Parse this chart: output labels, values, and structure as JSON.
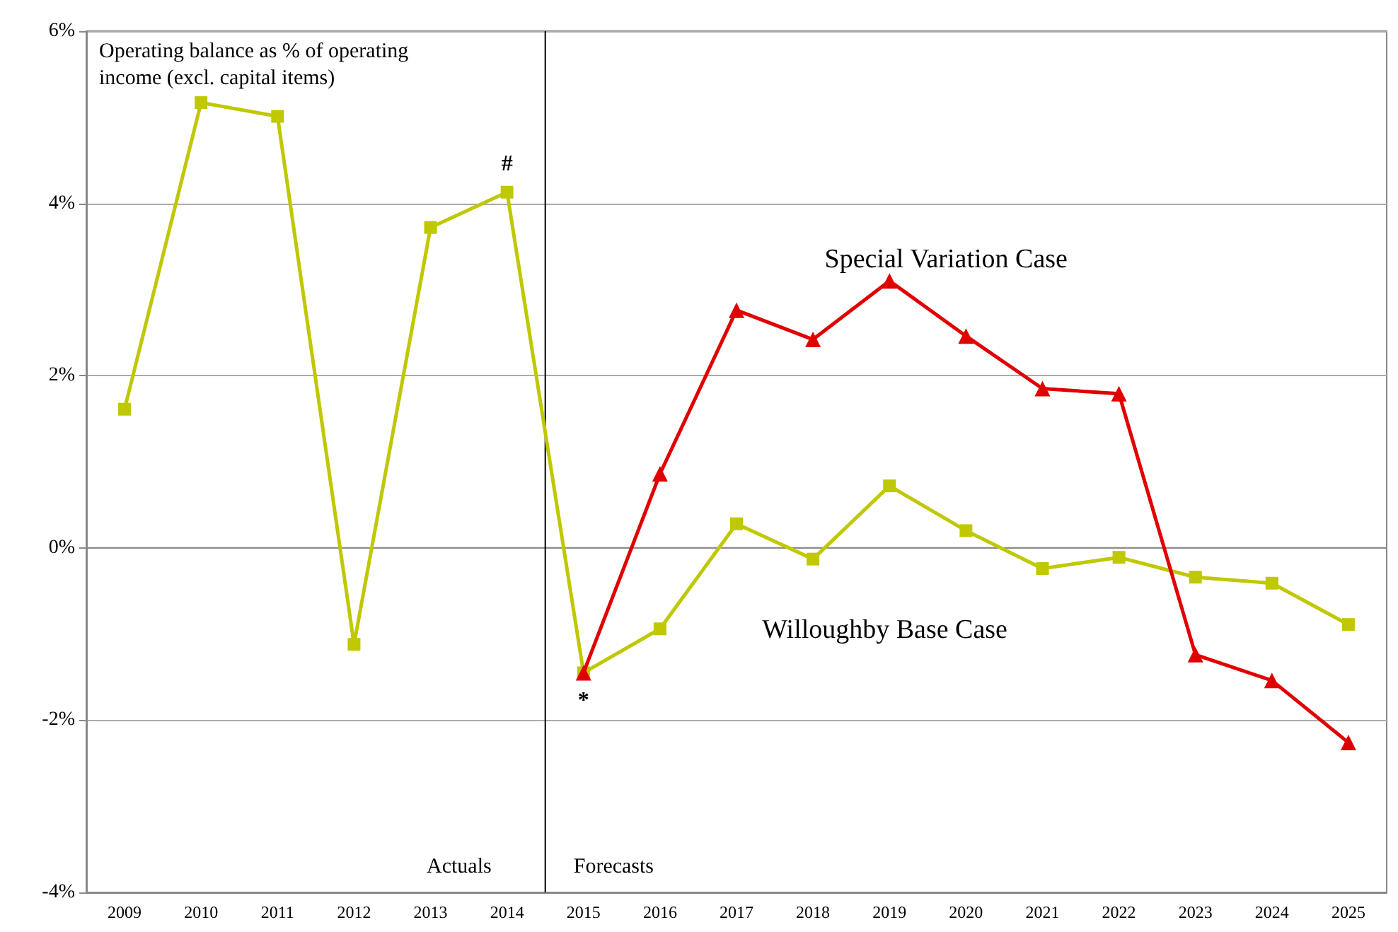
{
  "chart_data": {
    "type": "line",
    "title": "Operating balance as % of operating income (excl. capital items)",
    "categories": [
      "2009",
      "2010",
      "2011",
      "2012",
      "2013",
      "2014",
      "2015",
      "2016",
      "2017",
      "2018",
      "2019",
      "2020",
      "2021",
      "2022",
      "2023",
      "2024",
      "2025"
    ],
    "series": [
      {
        "name": "Willoughby Base Case",
        "color": "#bfc800",
        "marker": "square",
        "values": [
          1.61,
          5.17,
          5.01,
          -1.12,
          3.72,
          4.13,
          -1.45,
          -0.94,
          0.28,
          -0.13,
          0.72,
          0.2,
          -0.24,
          -0.11,
          -0.34,
          -0.41,
          -0.89
        ]
      },
      {
        "name": "Special Variation Case",
        "color": "#e00000",
        "marker": "triangle",
        "values": [
          null,
          null,
          null,
          null,
          null,
          null,
          -1.45,
          0.86,
          2.76,
          2.42,
          3.1,
          2.46,
          1.85,
          1.79,
          -1.24,
          -1.54,
          -2.26
        ]
      }
    ],
    "ylim": [
      -4,
      6
    ],
    "yticks": [
      {
        "value": -4,
        "label": "-4%"
      },
      {
        "value": -2,
        "label": "-2%"
      },
      {
        "value": 0,
        "label": "0%"
      },
      {
        "value": 2,
        "label": "2%"
      },
      {
        "value": 4,
        "label": "4%"
      },
      {
        "value": 6,
        "label": "6%"
      }
    ],
    "grid": "y",
    "legend": false,
    "line_style": "solid",
    "ref_lines": [
      {
        "axis": "x",
        "value": "2015",
        "label": null
      }
    ],
    "annotations": [
      {
        "text": "#",
        "x": "2014",
        "y": 4.13
      },
      {
        "text": "*",
        "x": "2015",
        "y": -1.45
      },
      "Actuals",
      "Forecasts"
    ]
  }
}
